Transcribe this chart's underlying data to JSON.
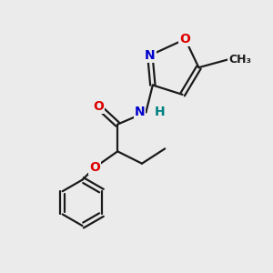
{
  "bg_color": "#ebebeb",
  "bond_color": "#1a1a1a",
  "bond_width": 1.6,
  "atom_colors": {
    "O": "#dd0000",
    "N": "#0000cc",
    "NH_N": "#0000cc",
    "NH_H": "#008080",
    "C": "#1a1a1a"
  },
  "font_size": 10,
  "fig_size": [
    3.0,
    3.0
  ],
  "dpi": 100
}
